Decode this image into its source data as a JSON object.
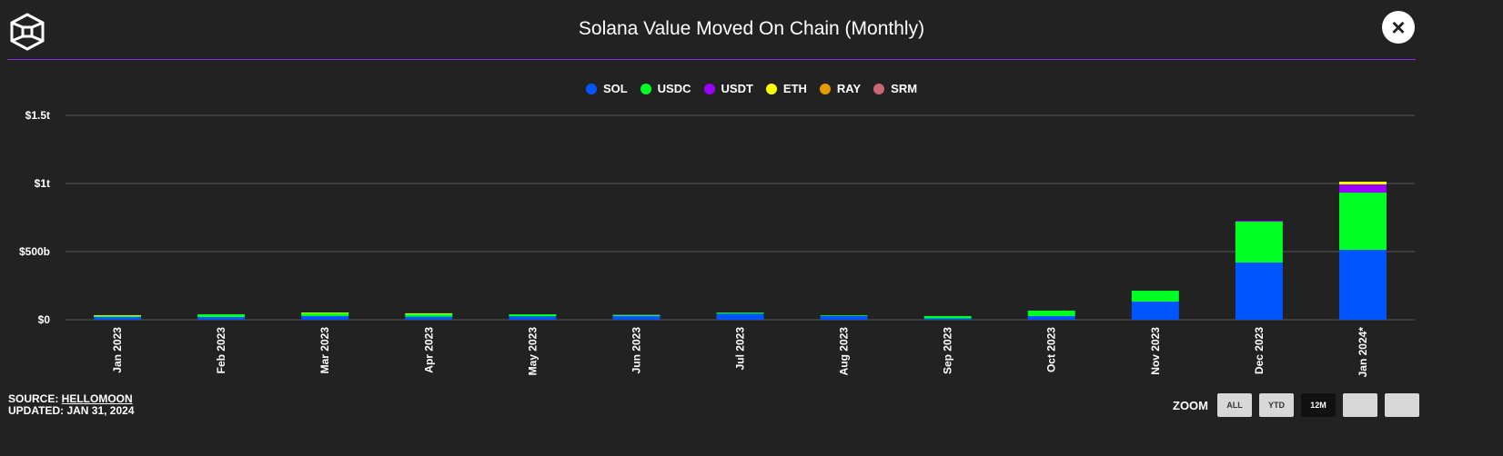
{
  "header": {
    "title": "Solana Value Moved On Chain (Monthly)",
    "close_label": "×",
    "logo_icon": "cube-logo-icon",
    "accent": "#8a2be2"
  },
  "footer": {
    "source_label": "SOURCE: ",
    "source_link": "HELLOMOON",
    "updated": "UPDATED: JAN 31, 2024"
  },
  "zoom": {
    "label": "ZOOM",
    "buttons": [
      "ALL",
      "YTD",
      "12M",
      "",
      ""
    ],
    "active": "12M"
  },
  "chart_data": {
    "type": "bar",
    "stacked": true,
    "title": "Solana Value Moved On Chain (Monthly)",
    "categories": [
      "Jan 2023",
      "Feb 2023",
      "Mar 2023",
      "Apr 2023",
      "May 2023",
      "Jun 2023",
      "Jul 2023",
      "Aug 2023",
      "Sep 2023",
      "Oct 2023",
      "Nov 2023",
      "Dec 2023",
      "Jan 2024*"
    ],
    "unit": "billions USD",
    "yticks": [
      {
        "v": 0,
        "label": "$0"
      },
      {
        "v": 500,
        "label": "$500b"
      },
      {
        "v": 1000,
        "label": "$1t"
      },
      {
        "v": 1500,
        "label": "$1.5t"
      }
    ],
    "ylim": [
      0,
      1500
    ],
    "grid": true,
    "legend_position": "top",
    "series": [
      {
        "name": "SOL",
        "color": "#0055ff",
        "values": [
          20,
          20,
          27,
          22,
          25,
          25,
          45,
          28,
          10,
          27,
          133,
          420,
          513
        ]
      },
      {
        "name": "USDC",
        "color": "#00ff22",
        "values": [
          10,
          20,
          25,
          22,
          15,
          12,
          8,
          5,
          17,
          40,
          80,
          300,
          420
        ]
      },
      {
        "name": "USDT",
        "color": "#9900ff",
        "values": [
          0,
          0,
          0,
          0,
          0,
          3,
          0,
          0,
          0,
          0,
          0,
          7,
          60
        ]
      },
      {
        "name": "ETH",
        "color": "#ffff00",
        "values": [
          3,
          0,
          1,
          3,
          0,
          0,
          0,
          0,
          0,
          0,
          0,
          0,
          20
        ]
      },
      {
        "name": "RAY",
        "color": "#e69a00",
        "values": [
          0,
          0,
          0,
          0,
          0,
          0,
          0,
          0,
          0,
          0,
          0,
          0,
          0
        ]
      },
      {
        "name": "SRM",
        "color": "#cc6677",
        "values": [
          0,
          0,
          0,
          0,
          0,
          0,
          0,
          0,
          0,
          0,
          0,
          0,
          0
        ]
      }
    ]
  }
}
